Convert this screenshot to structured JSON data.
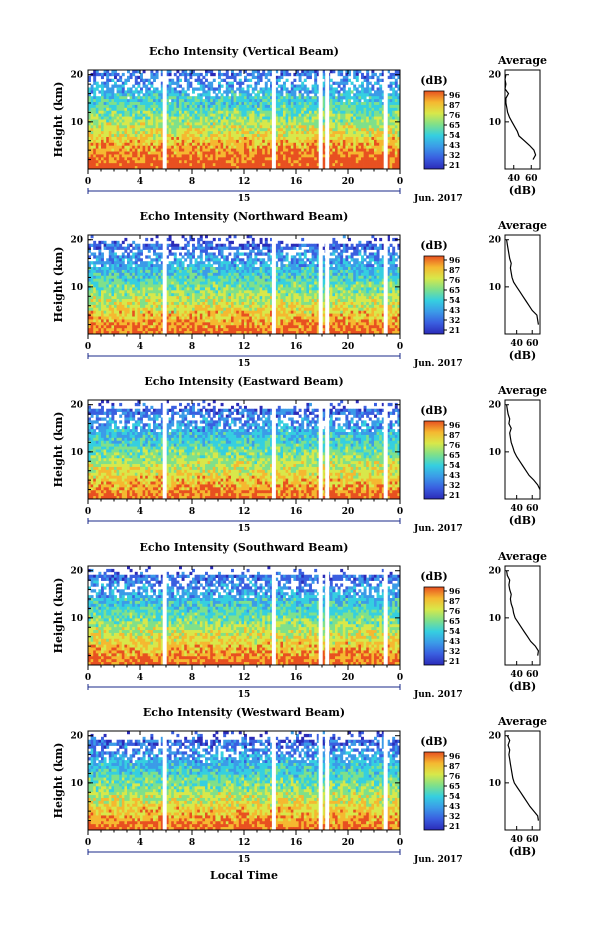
{
  "chart_data": [
    {
      "type": "heatmap",
      "title": "Echo Intensity (Vertical Beam)",
      "ylabel": "Height (km)",
      "x_ticks": [
        "0",
        "4",
        "8",
        "12",
        "16",
        "20",
        "0"
      ],
      "y_ticks": [
        "10",
        "20"
      ],
      "date_label": "15",
      "month_label": "Jun. 2017",
      "colorbar_unit": "(dB)",
      "colorbar_ticks": [
        "96",
        "87",
        "76",
        "65",
        "54",
        "43",
        "32",
        "21"
      ],
      "profile": {
        "title": "Average",
        "xlabel": "(dB)",
        "x_ticks": [
          "40",
          "60"
        ],
        "y_ticks": [
          "10",
          "20"
        ],
        "xlim": [
          30,
          70
        ],
        "points": [
          [
            62,
            2
          ],
          [
            65,
            3
          ],
          [
            63,
            4
          ],
          [
            58,
            5
          ],
          [
            52,
            6
          ],
          [
            46,
            7
          ],
          [
            44,
            8
          ],
          [
            41,
            9
          ],
          [
            38,
            10
          ],
          [
            35,
            11
          ],
          [
            33,
            12
          ],
          [
            32,
            13
          ],
          [
            31,
            14
          ],
          [
            31,
            15
          ],
          [
            34,
            16
          ],
          [
            30,
            17
          ],
          [
            31,
            18
          ],
          [
            30,
            19
          ],
          [
            31,
            20
          ]
        ]
      }
    },
    {
      "type": "heatmap",
      "title": "Echo Intensity (Northward Beam)",
      "ylabel": "Height (km)",
      "x_ticks": [
        "0",
        "4",
        "8",
        "12",
        "16",
        "20",
        "0"
      ],
      "y_ticks": [
        "10",
        "20"
      ],
      "date_label": "15",
      "month_label": "Jun. 2017",
      "colorbar_unit": "(dB)",
      "colorbar_ticks": [
        "96",
        "87",
        "76",
        "65",
        "54",
        "43",
        "32",
        "21"
      ],
      "profile": {
        "title": "Average",
        "xlabel": "(dB)",
        "x_ticks": [
          "40",
          "60"
        ],
        "y_ticks": [
          "10",
          "20"
        ],
        "xlim": [
          25,
          70
        ],
        "points": [
          [
            68,
            2
          ],
          [
            66,
            4
          ],
          [
            60,
            5
          ],
          [
            56,
            6
          ],
          [
            52,
            7
          ],
          [
            48,
            8
          ],
          [
            44,
            9
          ],
          [
            40,
            10
          ],
          [
            36,
            11
          ],
          [
            34,
            12
          ],
          [
            33,
            13
          ],
          [
            32,
            14
          ],
          [
            33,
            15
          ],
          [
            31,
            16
          ],
          [
            30,
            17
          ],
          [
            29,
            18
          ],
          [
            28,
            19
          ],
          [
            27,
            20
          ]
        ]
      }
    },
    {
      "type": "heatmap",
      "title": "Echo Intensity (Eastward Beam)",
      "ylabel": "Height (km)",
      "x_ticks": [
        "0",
        "4",
        "8",
        "12",
        "16",
        "20",
        "0"
      ],
      "y_ticks": [
        "10",
        "20"
      ],
      "date_label": "15",
      "month_label": "Jun. 2017",
      "colorbar_unit": "(dB)",
      "colorbar_ticks": [
        "96",
        "87",
        "76",
        "65",
        "54",
        "43",
        "32",
        "21"
      ],
      "profile": {
        "title": "Average",
        "xlabel": "(dB)",
        "x_ticks": [
          "40",
          "60"
        ],
        "y_ticks": [
          "10",
          "20"
        ],
        "xlim": [
          25,
          70
        ],
        "points": [
          [
            70,
            2
          ],
          [
            67,
            3
          ],
          [
            62,
            4
          ],
          [
            56,
            5
          ],
          [
            52,
            6
          ],
          [
            48,
            7
          ],
          [
            44,
            8
          ],
          [
            40,
            9
          ],
          [
            37,
            10
          ],
          [
            35,
            11
          ],
          [
            33,
            12
          ],
          [
            32,
            13
          ],
          [
            31,
            14
          ],
          [
            33,
            15
          ],
          [
            30,
            16
          ],
          [
            31,
            17
          ],
          [
            29,
            18
          ],
          [
            28,
            19
          ],
          [
            27,
            20
          ]
        ]
      }
    },
    {
      "type": "heatmap",
      "title": "Echo Intensity (Southward Beam)",
      "ylabel": "Height (km)",
      "x_ticks": [
        "0",
        "4",
        "8",
        "12",
        "16",
        "20",
        "0"
      ],
      "y_ticks": [
        "10",
        "20"
      ],
      "date_label": "15",
      "month_label": "Jun. 2017",
      "colorbar_unit": "(dB)",
      "colorbar_ticks": [
        "96",
        "87",
        "76",
        "65",
        "54",
        "43",
        "32",
        "21"
      ],
      "profile": {
        "title": "Average",
        "xlabel": "(dB)",
        "x_ticks": [
          "40",
          "60"
        ],
        "y_ticks": [
          "10",
          "20"
        ],
        "xlim": [
          25,
          70
        ],
        "points": [
          [
            67,
            2
          ],
          [
            68,
            3
          ],
          [
            64,
            4
          ],
          [
            58,
            5
          ],
          [
            54,
            6
          ],
          [
            50,
            7
          ],
          [
            46,
            8
          ],
          [
            42,
            9
          ],
          [
            38,
            10
          ],
          [
            36,
            11
          ],
          [
            35,
            12
          ],
          [
            33,
            13
          ],
          [
            32,
            14
          ],
          [
            33,
            15
          ],
          [
            31,
            16
          ],
          [
            30,
            17
          ],
          [
            31,
            18
          ],
          [
            28,
            19
          ],
          [
            27,
            20
          ]
        ]
      }
    },
    {
      "type": "heatmap",
      "title": "Echo Intensity (Westward Beam)",
      "ylabel": "Height (km)",
      "x_ticks": [
        "0",
        "4",
        "8",
        "12",
        "16",
        "20",
        "0"
      ],
      "y_ticks": [
        "10",
        "20"
      ],
      "date_label": "15",
      "month_label": "Jun. 2017",
      "colorbar_unit": "(dB)",
      "colorbar_ticks": [
        "96",
        "87",
        "76",
        "65",
        "54",
        "43",
        "32",
        "21"
      ],
      "profile": {
        "title": "Average",
        "xlabel": "(dB)",
        "x_ticks": [
          "40",
          "60"
        ],
        "y_ticks": [
          "10",
          "20"
        ],
        "xlim": [
          25,
          70
        ],
        "points": [
          [
            68,
            2
          ],
          [
            67,
            3
          ],
          [
            62,
            4
          ],
          [
            57,
            5
          ],
          [
            53,
            6
          ],
          [
            49,
            7
          ],
          [
            45,
            8
          ],
          [
            41,
            9
          ],
          [
            37,
            10
          ],
          [
            35,
            11
          ],
          [
            34,
            12
          ],
          [
            33,
            13
          ],
          [
            32,
            14
          ],
          [
            31,
            15
          ],
          [
            30,
            16
          ],
          [
            31,
            17
          ],
          [
            29,
            18
          ],
          [
            31,
            19
          ],
          [
            28,
            20
          ]
        ]
      }
    }
  ],
  "xlabel": "Local Time",
  "colorscale": [
    "#2b2bb8",
    "#3a5fe0",
    "#3b9be8",
    "#35cfe0",
    "#7fe08a",
    "#d8e84a",
    "#f5b830",
    "#e85020"
  ]
}
